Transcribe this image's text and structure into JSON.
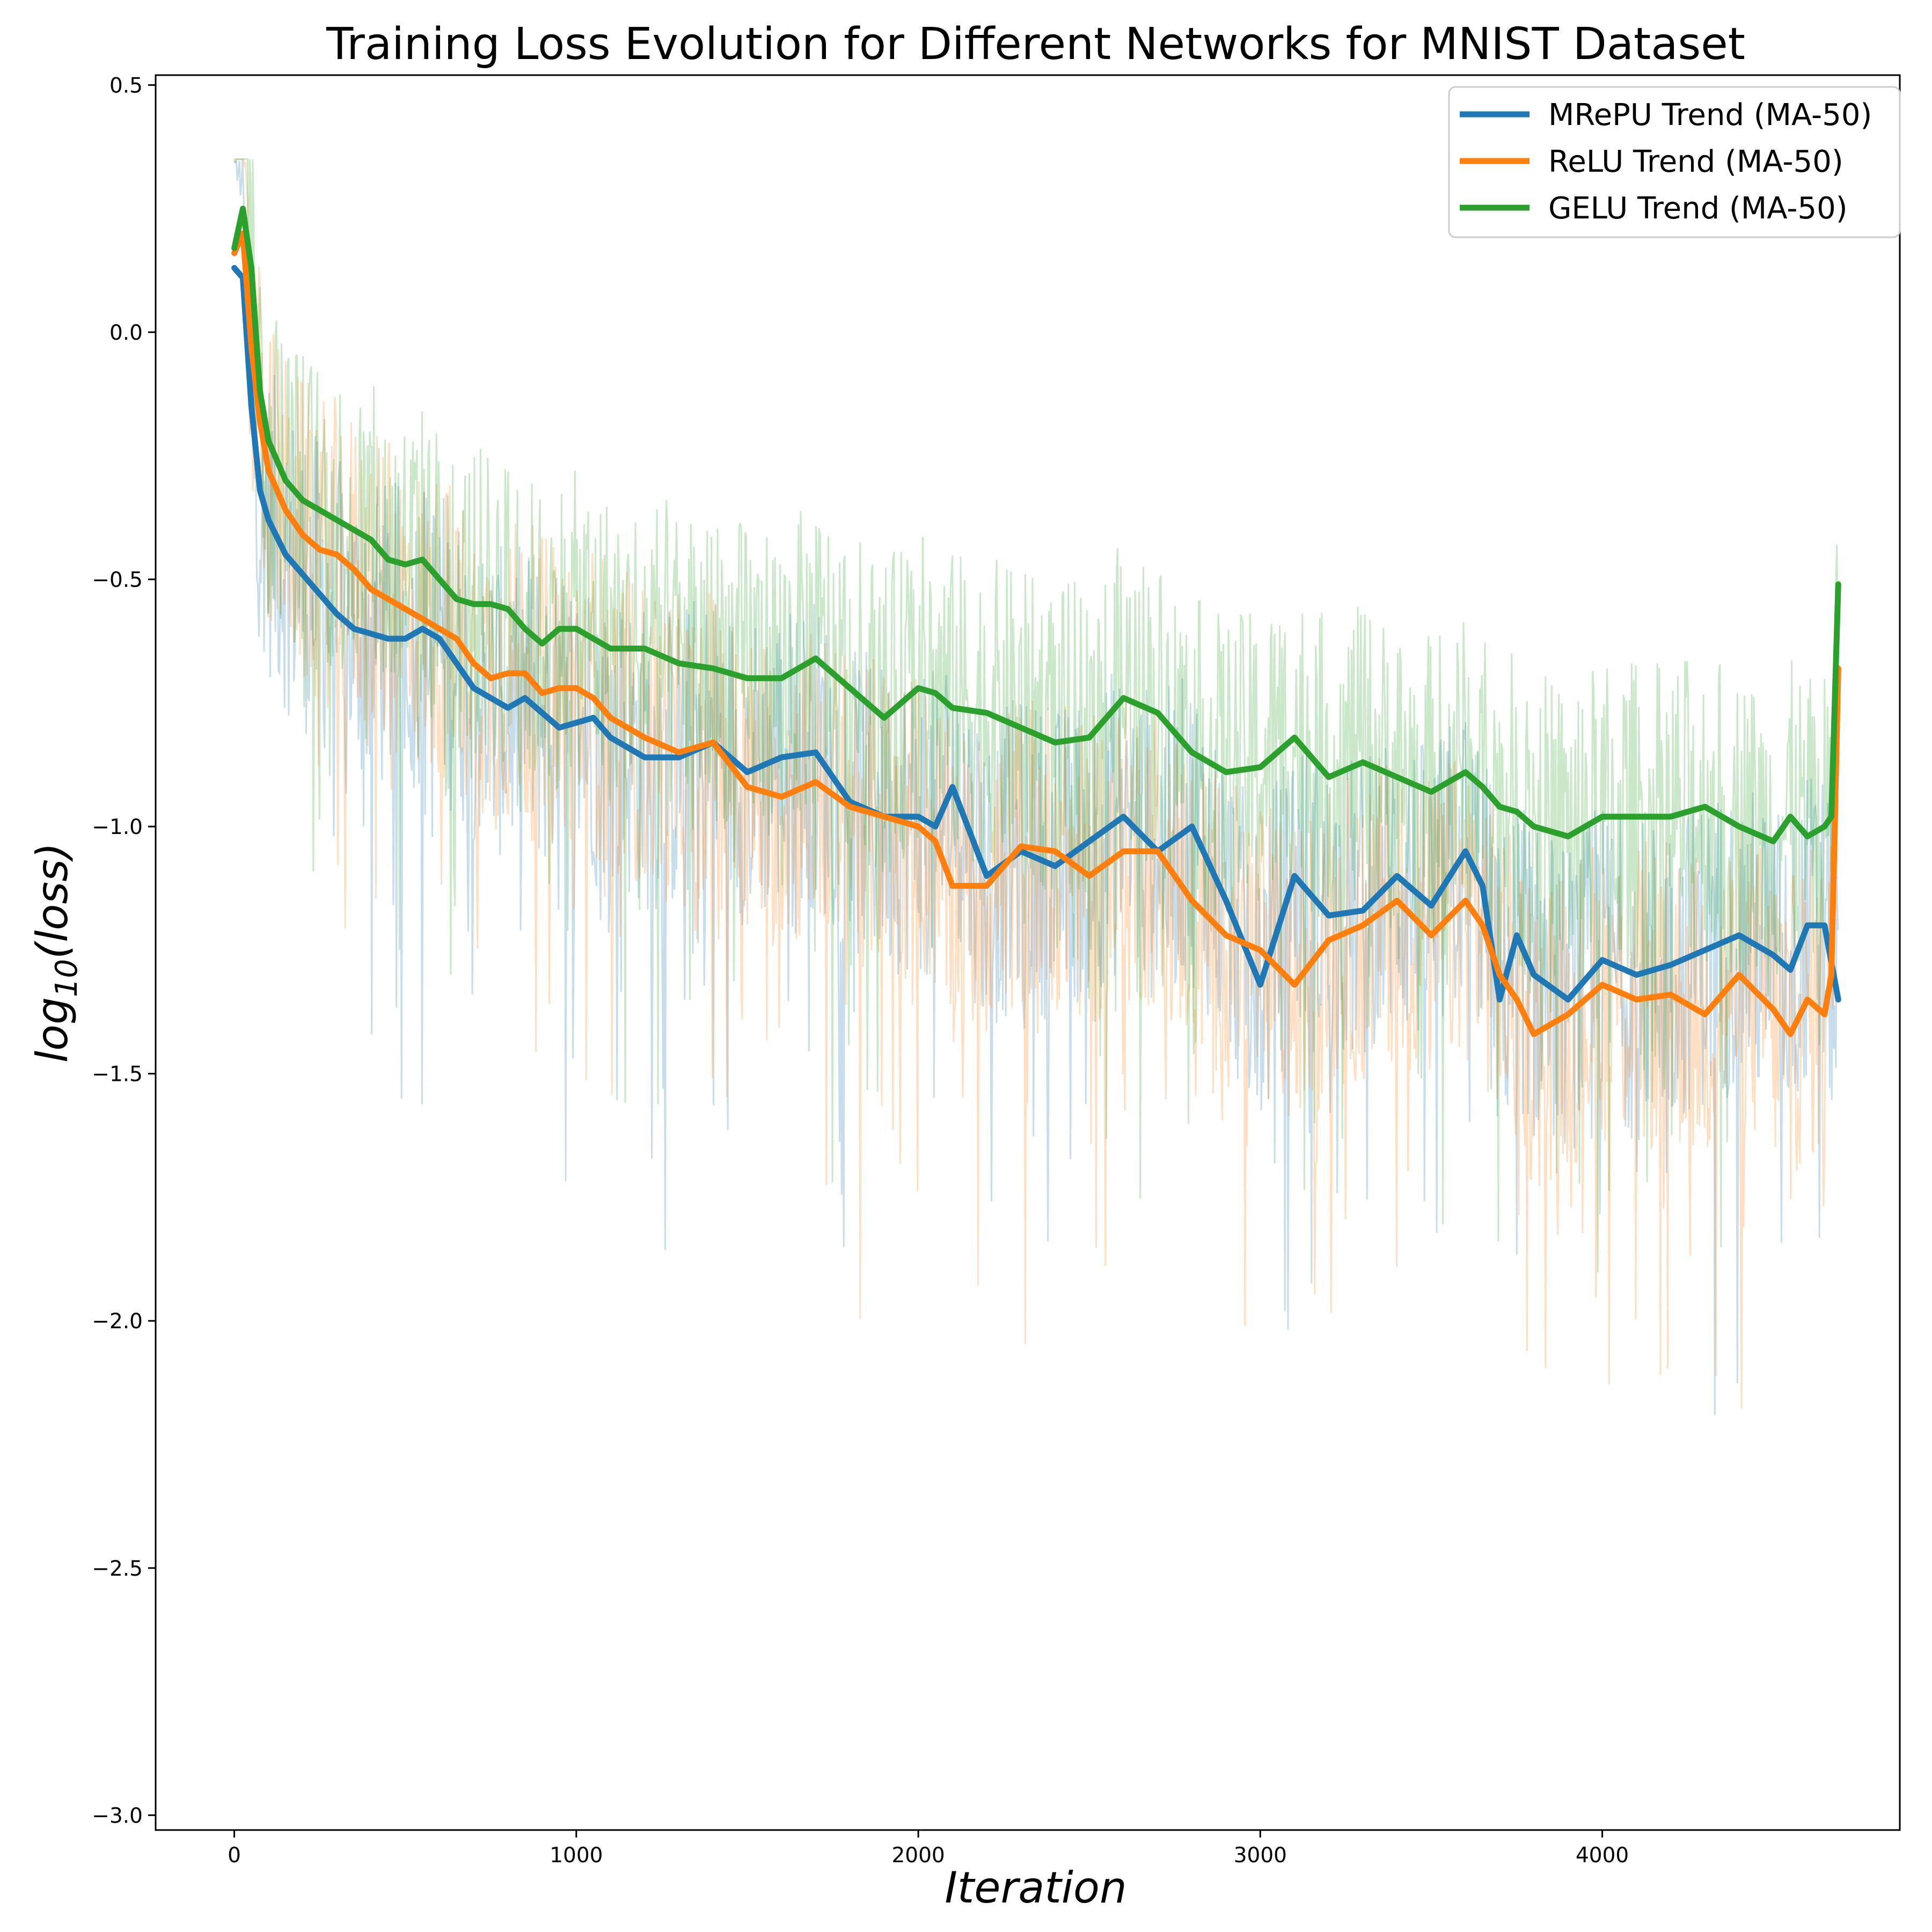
{
  "chart_data": {
    "type": "line",
    "title": "Training Loss Evolution for Different Networks for MNIST Dataset",
    "xlabel": "Iteration",
    "ylabel_base": "log",
    "ylabel_sub": "10",
    "ylabel_arg": "(loss)",
    "xlim": [
      -230,
      4870
    ],
    "ylim": [
      -3.03,
      0.52
    ],
    "xticks": [
      0,
      1000,
      2000,
      3000,
      4000
    ],
    "xtick_labels": [
      "0",
      "1000",
      "2000",
      "3000",
      "4000"
    ],
    "yticks": [
      0.5,
      0.0,
      -0.5,
      -1.0,
      -1.5,
      -2.0,
      -2.5,
      -3.0
    ],
    "ytick_labels": [
      "0.5",
      "0.0",
      "−0.5",
      "−1.0",
      "−1.5",
      "−2.0",
      "−2.5",
      "−3.0"
    ],
    "grid": false,
    "legend_position": "top-right",
    "raw_alpha": 0.25,
    "raw_noise_amplitude": 0.32,
    "series": [
      {
        "name": "MRePU Trend (MA-50)",
        "color": "#1f77b4",
        "x": [
          0,
          25,
          50,
          75,
          100,
          150,
          200,
          250,
          300,
          350,
          400,
          450,
          500,
          550,
          600,
          650,
          700,
          750,
          800,
          850,
          900,
          950,
          1000,
          1050,
          1100,
          1200,
          1300,
          1400,
          1500,
          1600,
          1700,
          1800,
          1900,
          2000,
          2050,
          2100,
          2200,
          2300,
          2400,
          2500,
          2600,
          2700,
          2800,
          2900,
          3000,
          3100,
          3200,
          3300,
          3400,
          3500,
          3600,
          3650,
          3700,
          3750,
          3800,
          3900,
          4000,
          4100,
          4200,
          4300,
          4400,
          4500,
          4550,
          4600,
          4650,
          4690
        ],
        "y": [
          0.13,
          0.11,
          -0.15,
          -0.32,
          -0.38,
          -0.45,
          -0.49,
          -0.53,
          -0.57,
          -0.6,
          -0.61,
          -0.62,
          -0.62,
          -0.6,
          -0.62,
          -0.67,
          -0.72,
          -0.74,
          -0.76,
          -0.74,
          -0.77,
          -0.8,
          -0.79,
          -0.78,
          -0.82,
          -0.86,
          -0.86,
          -0.83,
          -0.89,
          -0.86,
          -0.85,
          -0.95,
          -0.98,
          -0.98,
          -1.0,
          -0.92,
          -1.1,
          -1.05,
          -1.08,
          -1.03,
          -0.98,
          -1.05,
          -1.0,
          -1.15,
          -1.32,
          -1.1,
          -1.18,
          -1.17,
          -1.1,
          -1.16,
          -1.05,
          -1.12,
          -1.35,
          -1.22,
          -1.3,
          -1.35,
          -1.27,
          -1.3,
          -1.28,
          -1.25,
          -1.22,
          -1.26,
          -1.29,
          -1.2,
          -1.2,
          -1.35
        ]
      },
      {
        "name": "ReLU Trend (MA-50)",
        "color": "#ff7f0e",
        "x": [
          0,
          25,
          50,
          75,
          100,
          150,
          200,
          250,
          300,
          350,
          400,
          450,
          500,
          550,
          600,
          650,
          700,
          750,
          800,
          850,
          900,
          950,
          1000,
          1050,
          1100,
          1200,
          1300,
          1400,
          1500,
          1600,
          1700,
          1800,
          1900,
          2000,
          2050,
          2100,
          2200,
          2300,
          2400,
          2500,
          2600,
          2700,
          2800,
          2900,
          3000,
          3100,
          3200,
          3300,
          3400,
          3500,
          3600,
          3650,
          3700,
          3750,
          3800,
          3900,
          4000,
          4100,
          4200,
          4300,
          4400,
          4500,
          4550,
          4600,
          4650,
          4670,
          4690
        ],
        "y": [
          0.16,
          0.2,
          -0.03,
          -0.18,
          -0.28,
          -0.36,
          -0.41,
          -0.44,
          -0.45,
          -0.48,
          -0.52,
          -0.54,
          -0.56,
          -0.58,
          -0.6,
          -0.62,
          -0.67,
          -0.7,
          -0.69,
          -0.69,
          -0.73,
          -0.72,
          -0.72,
          -0.74,
          -0.78,
          -0.82,
          -0.85,
          -0.83,
          -0.92,
          -0.94,
          -0.91,
          -0.96,
          -0.98,
          -1.0,
          -1.03,
          -1.12,
          -1.12,
          -1.04,
          -1.05,
          -1.1,
          -1.05,
          -1.05,
          -1.15,
          -1.22,
          -1.25,
          -1.32,
          -1.23,
          -1.2,
          -1.15,
          -1.22,
          -1.15,
          -1.2,
          -1.3,
          -1.35,
          -1.42,
          -1.38,
          -1.32,
          -1.35,
          -1.34,
          -1.38,
          -1.3,
          -1.37,
          -1.42,
          -1.35,
          -1.38,
          -1.3,
          -0.68
        ]
      },
      {
        "name": "GELU Trend (MA-50)",
        "color": "#2ca02c",
        "x": [
          0,
          25,
          50,
          75,
          100,
          150,
          200,
          250,
          300,
          350,
          400,
          450,
          500,
          550,
          600,
          650,
          700,
          750,
          800,
          850,
          900,
          950,
          1000,
          1050,
          1100,
          1200,
          1300,
          1400,
          1500,
          1600,
          1700,
          1800,
          1900,
          2000,
          2050,
          2100,
          2200,
          2300,
          2400,
          2500,
          2600,
          2700,
          2800,
          2900,
          3000,
          3100,
          3200,
          3300,
          3400,
          3500,
          3600,
          3650,
          3700,
          3750,
          3800,
          3900,
          4000,
          4100,
          4200,
          4300,
          4400,
          4500,
          4550,
          4600,
          4650,
          4670,
          4690
        ],
        "y": [
          0.17,
          0.25,
          0.13,
          -0.12,
          -0.22,
          -0.3,
          -0.34,
          -0.36,
          -0.38,
          -0.4,
          -0.42,
          -0.46,
          -0.47,
          -0.46,
          -0.5,
          -0.54,
          -0.55,
          -0.55,
          -0.56,
          -0.6,
          -0.63,
          -0.6,
          -0.6,
          -0.62,
          -0.64,
          -0.64,
          -0.67,
          -0.68,
          -0.7,
          -0.7,
          -0.66,
          -0.72,
          -0.78,
          -0.72,
          -0.73,
          -0.76,
          -0.77,
          -0.8,
          -0.83,
          -0.82,
          -0.74,
          -0.77,
          -0.85,
          -0.89,
          -0.88,
          -0.82,
          -0.9,
          -0.87,
          -0.9,
          -0.93,
          -0.89,
          -0.92,
          -0.96,
          -0.97,
          -1.0,
          -1.02,
          -0.98,
          -0.98,
          -0.98,
          -0.96,
          -1.0,
          -1.03,
          -0.98,
          -1.02,
          -1.0,
          -0.98,
          -0.51
        ]
      }
    ]
  }
}
